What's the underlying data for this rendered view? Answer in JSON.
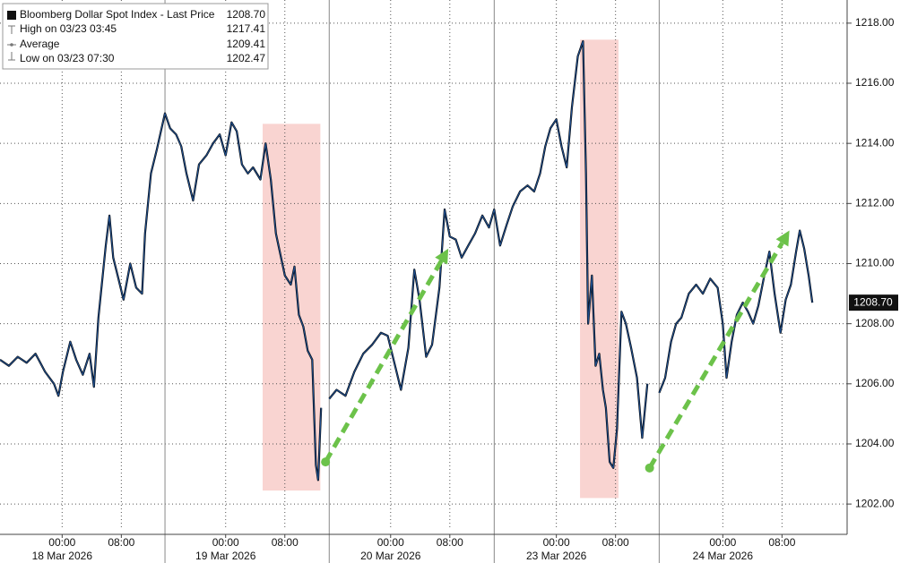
{
  "chart_data": {
    "type": "line",
    "legend": [
      {
        "label": "Bloomberg Dollar Spot Index - Last Price",
        "value": 1208.7,
        "value_label": "1208.70"
      },
      {
        "label": "High on 03/23 03:45",
        "value": 1217.41
      },
      {
        "label": "Average",
        "value": 1209.41
      },
      {
        "label": "Low on 03/23 07:30",
        "value": 1202.47
      }
    ],
    "last_value": {
      "value": 1208.7,
      "label": "1208.70"
    },
    "xlim": [
      0,
      114.5
    ],
    "xticks": [
      {
        "value": 8.4,
        "label": "00:00"
      },
      {
        "value": 16.4,
        "label": "08:00"
      },
      {
        "value": 30.5,
        "label": "00:00"
      },
      {
        "value": 38.5,
        "label": "08:00"
      },
      {
        "value": 52.8,
        "label": "00:00"
      },
      {
        "value": 60.8,
        "label": "08:00"
      },
      {
        "value": 75.2,
        "label": "00:00"
      },
      {
        "value": 83.2,
        "label": "08:00"
      },
      {
        "value": 97.7,
        "label": "00:00"
      },
      {
        "value": 105.7,
        "label": "08:00"
      }
    ],
    "dates": [
      {
        "value": 8.4,
        "label": "18 Mar 2026"
      },
      {
        "value": 30.5,
        "label": "19 Mar 2026"
      },
      {
        "value": 52.8,
        "label": "20 Mar 2026"
      },
      {
        "value": 75.2,
        "label": "23 Mar 2026"
      },
      {
        "value": 97.7,
        "label": "24 Mar 2026"
      }
    ],
    "day_breaks": [
      22.3,
      44.5,
      66.8,
      89.1
    ],
    "ylim": [
      1201.14,
      1218.77
    ],
    "yticks": [
      {
        "value": 1202,
        "label": "1202.00"
      },
      {
        "value": 1204,
        "label": "1204.00"
      },
      {
        "value": 1206,
        "label": "1206.00"
      },
      {
        "value": 1208,
        "label": "1208.00"
      },
      {
        "value": 1210,
        "label": "1210.00"
      },
      {
        "value": 1212,
        "label": "1212.00"
      },
      {
        "value": 1214,
        "label": "1214.00"
      },
      {
        "value": 1216,
        "label": "1216.00"
      },
      {
        "value": 1218,
        "label": "1218.00"
      }
    ],
    "grid": true,
    "highlights": [
      {
        "x": [
          35.5,
          43.3
        ],
        "y": [
          1202.45,
          1214.65
        ],
        "color": "#f7c9c6"
      },
      {
        "x": [
          78.4,
          83.6
        ],
        "y": [
          1202.2,
          1217.45
        ],
        "color": "#f7c9c6"
      }
    ],
    "arrows": [
      {
        "x": [
          44.0,
          60.6
        ],
        "y": [
          1203.4,
          1210.5
        ],
        "color": "#6cc24a"
      },
      {
        "x": [
          87.8,
          106.7
        ],
        "y": [
          1203.2,
          1211.1
        ],
        "color": "#6cc24a"
      }
    ],
    "x": [
      0,
      1.2,
      2.4,
      3.6,
      4.8,
      6.1,
      7.3,
      7.9,
      8.5,
      9.5,
      10.3,
      11.2,
      12.1,
      12.7,
      13.3,
      14.3,
      14.8,
      15.3,
      16.0,
      16.7,
      17.6,
      18.4,
      19.2,
      19.6,
      20.4,
      21.2,
      22.3,
      23.0,
      23.8,
      24.5,
      25.2,
      26.1,
      26.9,
      27.9,
      28.8,
      29.7,
      30.5,
      31.3,
      32.0,
      32.7,
      33.5,
      34.2,
      35.2,
      35.9,
      36.6,
      37.3,
      37.9,
      38.5,
      39.3,
      39.8,
      40.4,
      41.0,
      41.6,
      42.2,
      42.7,
      43.0,
      43.4,
      44.0,
      44.5,
      45.5,
      46.7,
      47.9,
      49.1,
      50.3,
      51.5,
      52.4,
      53.3,
      54.2,
      55.2,
      56.0,
      56.7,
      57.6,
      58.4,
      59.4,
      60.1,
      60.8,
      61.6,
      62.4,
      63.3,
      64.2,
      65.2,
      66.1,
      66.8,
      67.6,
      68.5,
      69.3,
      70.3,
      71.3,
      72.2,
      73.0,
      73.7,
      74.4,
      75.2,
      75.9,
      76.6,
      77.3,
      78.1,
      78.8,
      79.2,
      79.5,
      80.0,
      80.5,
      81.0,
      81.5,
      81.9,
      82.4,
      82.9,
      83.4,
      84.0,
      84.6,
      85.3,
      86.1,
      86.8,
      87.5,
      88.3,
      89.1,
      89.9,
      90.7,
      91.4,
      92.1,
      93.1,
      94.1,
      95.0,
      96.0,
      97.0,
      97.7,
      98.2,
      98.9,
      99.6,
      100.4,
      101.1,
      101.8,
      102.5,
      103.3,
      104.0,
      104.7,
      105.5,
      106.2,
      106.9,
      107.6,
      108.1,
      108.7,
      109.3,
      109.8
    ],
    "series": [
      {
        "name": "Bloomberg Dollar Spot Index",
        "color": "#1f4f8f",
        "values": [
          1206.8,
          1206.6,
          1206.9,
          1206.7,
          1207.0,
          1206.4,
          1206.0,
          1205.6,
          1206.4,
          1207.4,
          1206.8,
          1206.3,
          1207.0,
          1205.9,
          1208.2,
          1210.6,
          1211.6,
          1210.2,
          1209.5,
          1208.8,
          1210.0,
          1209.2,
          1209.0,
          1211.0,
          1213.0,
          1213.8,
          1215.0,
          1214.5,
          1214.3,
          1213.9,
          1213.0,
          1212.1,
          1213.3,
          1213.6,
          1214.0,
          1214.3,
          1213.6,
          1214.7,
          1214.4,
          1213.3,
          1213.0,
          1213.2,
          1212.8,
          1214.0,
          1212.8,
          1211.0,
          1210.3,
          1209.6,
          1209.3,
          1209.9,
          1208.3,
          1207.9,
          1207.1,
          1206.8,
          1203.3,
          1202.8,
          1205.2,
          null,
          1205.5,
          1205.8,
          1205.6,
          1206.4,
          1207.0,
          1207.3,
          1207.7,
          1207.6,
          1206.7,
          1205.8,
          1207.2,
          1209.8,
          1208.8,
          1206.9,
          1207.3,
          1209.2,
          1211.8,
          1210.9,
          1210.8,
          1210.2,
          1210.6,
          1211.0,
          1211.6,
          1211.2,
          1211.8,
          1210.6,
          1211.3,
          1211.9,
          1212.4,
          1212.6,
          1212.4,
          1213.0,
          1213.9,
          1214.5,
          1214.8,
          1213.9,
          1213.2,
          1215.2,
          1216.9,
          1217.4,
          1213.0,
          1208.0,
          1209.6,
          1206.6,
          1207.0,
          1205.8,
          1205.2,
          1203.4,
          1203.2,
          1204.5,
          1208.4,
          1208.0,
          1207.2,
          1206.2,
          1204.2,
          1206.0,
          null,
          1205.7,
          1206.2,
          1207.4,
          1208.0,
          1208.2,
          1209.0,
          1209.3,
          1209.0,
          1209.5,
          1209.2,
          1208.0,
          1206.2,
          1207.4,
          1208.3,
          1208.7,
          1208.4,
          1208.0,
          1208.6,
          1209.6,
          1210.4,
          1209.0,
          1207.7,
          1208.8,
          1209.3,
          1210.4,
          1211.1,
          1210.5,
          1209.6,
          1208.7
        ]
      }
    ]
  }
}
